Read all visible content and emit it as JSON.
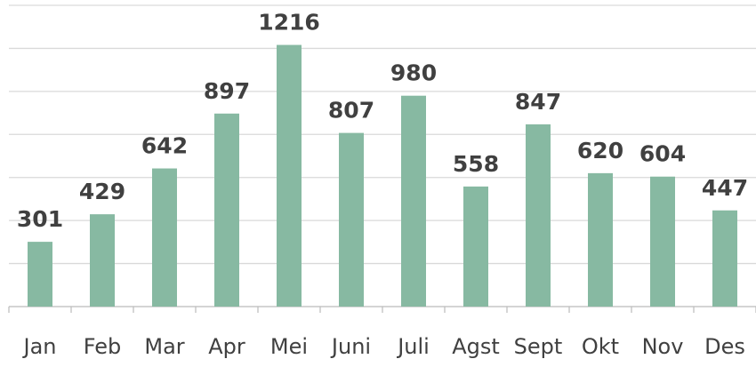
{
  "chart_data": {
    "type": "bar",
    "categories": [
      "Jan",
      "Feb",
      "Mar",
      "Apr",
      "Mei",
      "Juni",
      "Juli",
      "Agst",
      "Sept",
      "Okt",
      "Nov",
      "Des"
    ],
    "values": [
      301,
      429,
      642,
      897,
      1216,
      807,
      980,
      558,
      847,
      620,
      604,
      447
    ],
    "color": "#87b9a2",
    "ylim": [
      0,
      1400
    ],
    "yticks": [
      0,
      200,
      400,
      600,
      800,
      1000,
      1200,
      1400
    ],
    "grid": true
  }
}
